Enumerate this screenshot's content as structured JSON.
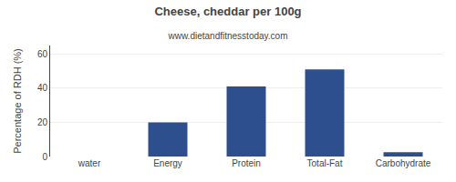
{
  "chart_data": {
    "type": "bar",
    "title": "Cheese, cheddar per 100g",
    "subtitle": "www.dietandfitnesstoday.com",
    "ylabel": "Percentage of RDH (%)",
    "categories": [
      "water",
      "Energy",
      "Protein",
      "Total-Fat",
      "Carbohydrate"
    ],
    "values": [
      0,
      20,
      41,
      51,
      2.5
    ],
    "color": "#2d4f8e",
    "ylim": [
      0,
      65
    ],
    "yticks": [
      0,
      20,
      40,
      60
    ],
    "grid": true
  }
}
